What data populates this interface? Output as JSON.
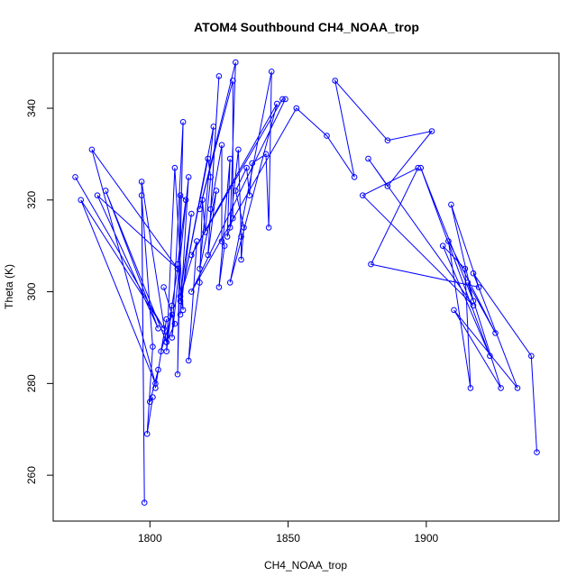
{
  "chart_data": {
    "type": "line",
    "title": "ATOM4 Southbound CH4_NOAA_trop",
    "xlabel": "CH4_NOAA_trop",
    "ylabel": "Theta (K)",
    "xlim": [
      1765,
      1948
    ],
    "ylim": [
      250,
      352
    ],
    "xticks": [
      1800,
      1850,
      1900
    ],
    "yticks": [
      260,
      280,
      300,
      320,
      340
    ],
    "grid": false,
    "legend": "none",
    "marker": "open-circle",
    "colors": {
      "series": "#0000ff",
      "axes": "#000000"
    },
    "series": [
      {
        "points": [
          [
            1773,
            325
          ],
          [
            1805,
            292
          ],
          [
            1775,
            320
          ],
          [
            1802,
            280
          ],
          [
            1779,
            331
          ],
          [
            1810,
            305
          ],
          [
            1781,
            321
          ],
          [
            1803,
            292
          ],
          [
            1784,
            322
          ],
          [
            1806,
            289
          ],
          [
            1797,
            324
          ],
          [
            1798,
            254
          ],
          [
            1797,
            321
          ],
          [
            1801,
            288
          ],
          [
            1799,
            269
          ],
          [
            1801,
            277
          ],
          [
            1800,
            276
          ],
          [
            1803,
            283
          ],
          [
            1802,
            279
          ],
          [
            1806,
            294
          ],
          [
            1804,
            287
          ],
          [
            1808,
            295
          ],
          [
            1805,
            301
          ],
          [
            1809,
            293
          ],
          [
            1806,
            289
          ],
          [
            1810,
            305
          ],
          [
            1808,
            297
          ],
          [
            1806,
            287
          ],
          [
            1809,
            327
          ],
          [
            1812,
            296
          ],
          [
            1810,
            306
          ],
          [
            1813,
            320
          ],
          [
            1811,
            321
          ],
          [
            1810,
            282
          ],
          [
            1812,
            337
          ],
          [
            1808,
            290
          ],
          [
            1814,
            325
          ],
          [
            1811,
            295
          ],
          [
            1815,
            317
          ],
          [
            1811,
            299
          ],
          [
            1817,
            311
          ],
          [
            1814,
            285
          ],
          [
            1818,
            302
          ],
          [
            1819,
            320
          ],
          [
            1820,
            313
          ],
          [
            1822,
            325
          ],
          [
            1821,
            329
          ],
          [
            1811,
            298
          ],
          [
            1823,
            336
          ],
          [
            1818,
            305
          ],
          [
            1824,
            322
          ],
          [
            1821,
            308
          ],
          [
            1825,
            347
          ],
          [
            1822,
            318
          ],
          [
            1826,
            332
          ],
          [
            1826,
            311
          ],
          [
            1827,
            310
          ],
          [
            1825,
            301
          ],
          [
            1829,
            329
          ],
          [
            1828,
            312
          ],
          [
            1830,
            316
          ],
          [
            1830,
            346
          ],
          [
            1818,
            318
          ],
          [
            1831,
            350
          ],
          [
            1829,
            314
          ],
          [
            1832,
            331
          ],
          [
            1833,
            312
          ],
          [
            1833,
            307
          ],
          [
            1834,
            314
          ],
          [
            1831,
            322
          ],
          [
            1835,
            327
          ],
          [
            1836,
            321
          ],
          [
            1837,
            328
          ],
          [
            1842,
            330
          ],
          [
            1843,
            314
          ],
          [
            1844,
            348
          ],
          [
            1829,
            302
          ],
          [
            1846,
            341
          ],
          [
            1815,
            308
          ],
          [
            1848,
            342
          ],
          [
            1849,
            342
          ],
          [
            1815,
            300
          ],
          [
            1853,
            340
          ],
          [
            1864,
            334
          ],
          [
            1874,
            325
          ],
          [
            1867,
            346
          ],
          [
            1886,
            333
          ],
          [
            1902,
            335
          ],
          [
            1886,
            323
          ],
          [
            1879,
            329
          ],
          [
            1917,
            297
          ],
          [
            1877,
            321
          ],
          [
            1897,
            327
          ],
          [
            1880,
            306
          ],
          [
            1919,
            301
          ],
          [
            1909,
            319
          ],
          [
            1917,
            298
          ],
          [
            1898,
            327
          ],
          [
            1923,
            286
          ],
          [
            1906,
            310
          ],
          [
            1914,
            305
          ],
          [
            1916,
            279
          ],
          [
            1908,
            311
          ],
          [
            1925,
            291
          ],
          [
            1915,
            302
          ],
          [
            1927,
            279
          ],
          [
            1910,
            296
          ],
          [
            1933,
            279
          ],
          [
            1917,
            304
          ],
          [
            1938,
            286
          ],
          [
            1940,
            265
          ]
        ]
      }
    ]
  }
}
